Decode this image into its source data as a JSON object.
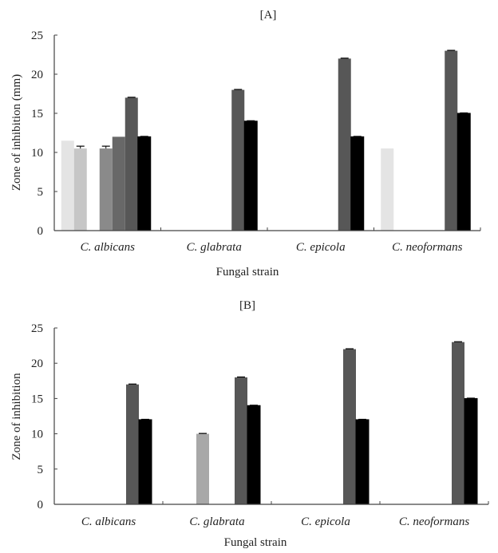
{
  "chart_data": [
    {
      "type": "bar",
      "title": "[A]",
      "xlabel": "Fungal strain",
      "ylabel": "Zone of inhibition (mm)",
      "ylim": [
        0,
        25
      ],
      "yticks": [
        "0",
        "5",
        "10",
        "15",
        "20",
        "25"
      ],
      "categories": [
        "C. albicans",
        "C. glabrata",
        "C. epicola",
        "C. neoformans"
      ],
      "grid": false,
      "legend": "none",
      "series": [
        {
          "name": "series-1",
          "color": "#e4e4e4",
          "values": [
            11.5,
            0,
            0,
            10.5
          ],
          "errors": [
            false,
            false,
            false,
            false
          ]
        },
        {
          "name": "series-2",
          "color": "#c6c6c6",
          "values": [
            10.5,
            0,
            0,
            0
          ],
          "errors": [
            true,
            false,
            false,
            false
          ]
        },
        {
          "name": "series-3",
          "color": "#a8a8a8",
          "values": [
            0,
            0,
            0,
            0
          ],
          "errors": [
            false,
            false,
            false,
            false
          ]
        },
        {
          "name": "series-4",
          "color": "#8a8a8a",
          "values": [
            10.5,
            0,
            0,
            0
          ],
          "errors": [
            true,
            false,
            false,
            false
          ]
        },
        {
          "name": "series-5",
          "color": "#686868",
          "values": [
            12,
            0,
            0,
            0
          ],
          "errors": [
            false,
            false,
            false,
            false
          ]
        },
        {
          "name": "series-6",
          "color": "#575757",
          "values": [
            17,
            18,
            22,
            23
          ],
          "errors": [
            true,
            true,
            true,
            true
          ]
        },
        {
          "name": "series-7",
          "color": "#000000",
          "values": [
            12,
            14,
            12,
            15
          ],
          "errors": [
            true,
            true,
            true,
            true
          ]
        }
      ]
    },
    {
      "type": "bar",
      "title": "[B]",
      "xlabel": "Fungal strain",
      "ylabel": "Zone of inhibition",
      "ylim": [
        0,
        25
      ],
      "yticks": [
        "0",
        "5",
        "10",
        "15",
        "20",
        "25"
      ],
      "categories": [
        "C. albicans",
        "C. glabrata",
        "C. epicola",
        "C. neoformans"
      ],
      "grid": false,
      "legend": "none",
      "series": [
        {
          "name": "series-1",
          "color": "#e4e4e4",
          "values": [
            0,
            0,
            0,
            0
          ],
          "errors": [
            false,
            false,
            false,
            false
          ]
        },
        {
          "name": "series-2",
          "color": "#c6c6c6",
          "values": [
            0,
            0,
            0,
            0
          ],
          "errors": [
            false,
            false,
            false,
            false
          ]
        },
        {
          "name": "series-3",
          "color": "#a8a8a8",
          "values": [
            0,
            10,
            0,
            0
          ],
          "errors": [
            false,
            true,
            false,
            false
          ]
        },
        {
          "name": "series-4",
          "color": "#8a8a8a",
          "values": [
            0,
            0,
            0,
            0
          ],
          "errors": [
            false,
            false,
            false,
            false
          ]
        },
        {
          "name": "series-5",
          "color": "#686868",
          "values": [
            0,
            0,
            0,
            0
          ],
          "errors": [
            false,
            false,
            false,
            false
          ]
        },
        {
          "name": "series-6",
          "color": "#575757",
          "values": [
            17,
            18,
            22,
            23
          ],
          "errors": [
            true,
            true,
            true,
            true
          ]
        },
        {
          "name": "series-7",
          "color": "#000000",
          "values": [
            12,
            14,
            12,
            15
          ],
          "errors": [
            true,
            true,
            true,
            true
          ]
        }
      ]
    }
  ]
}
